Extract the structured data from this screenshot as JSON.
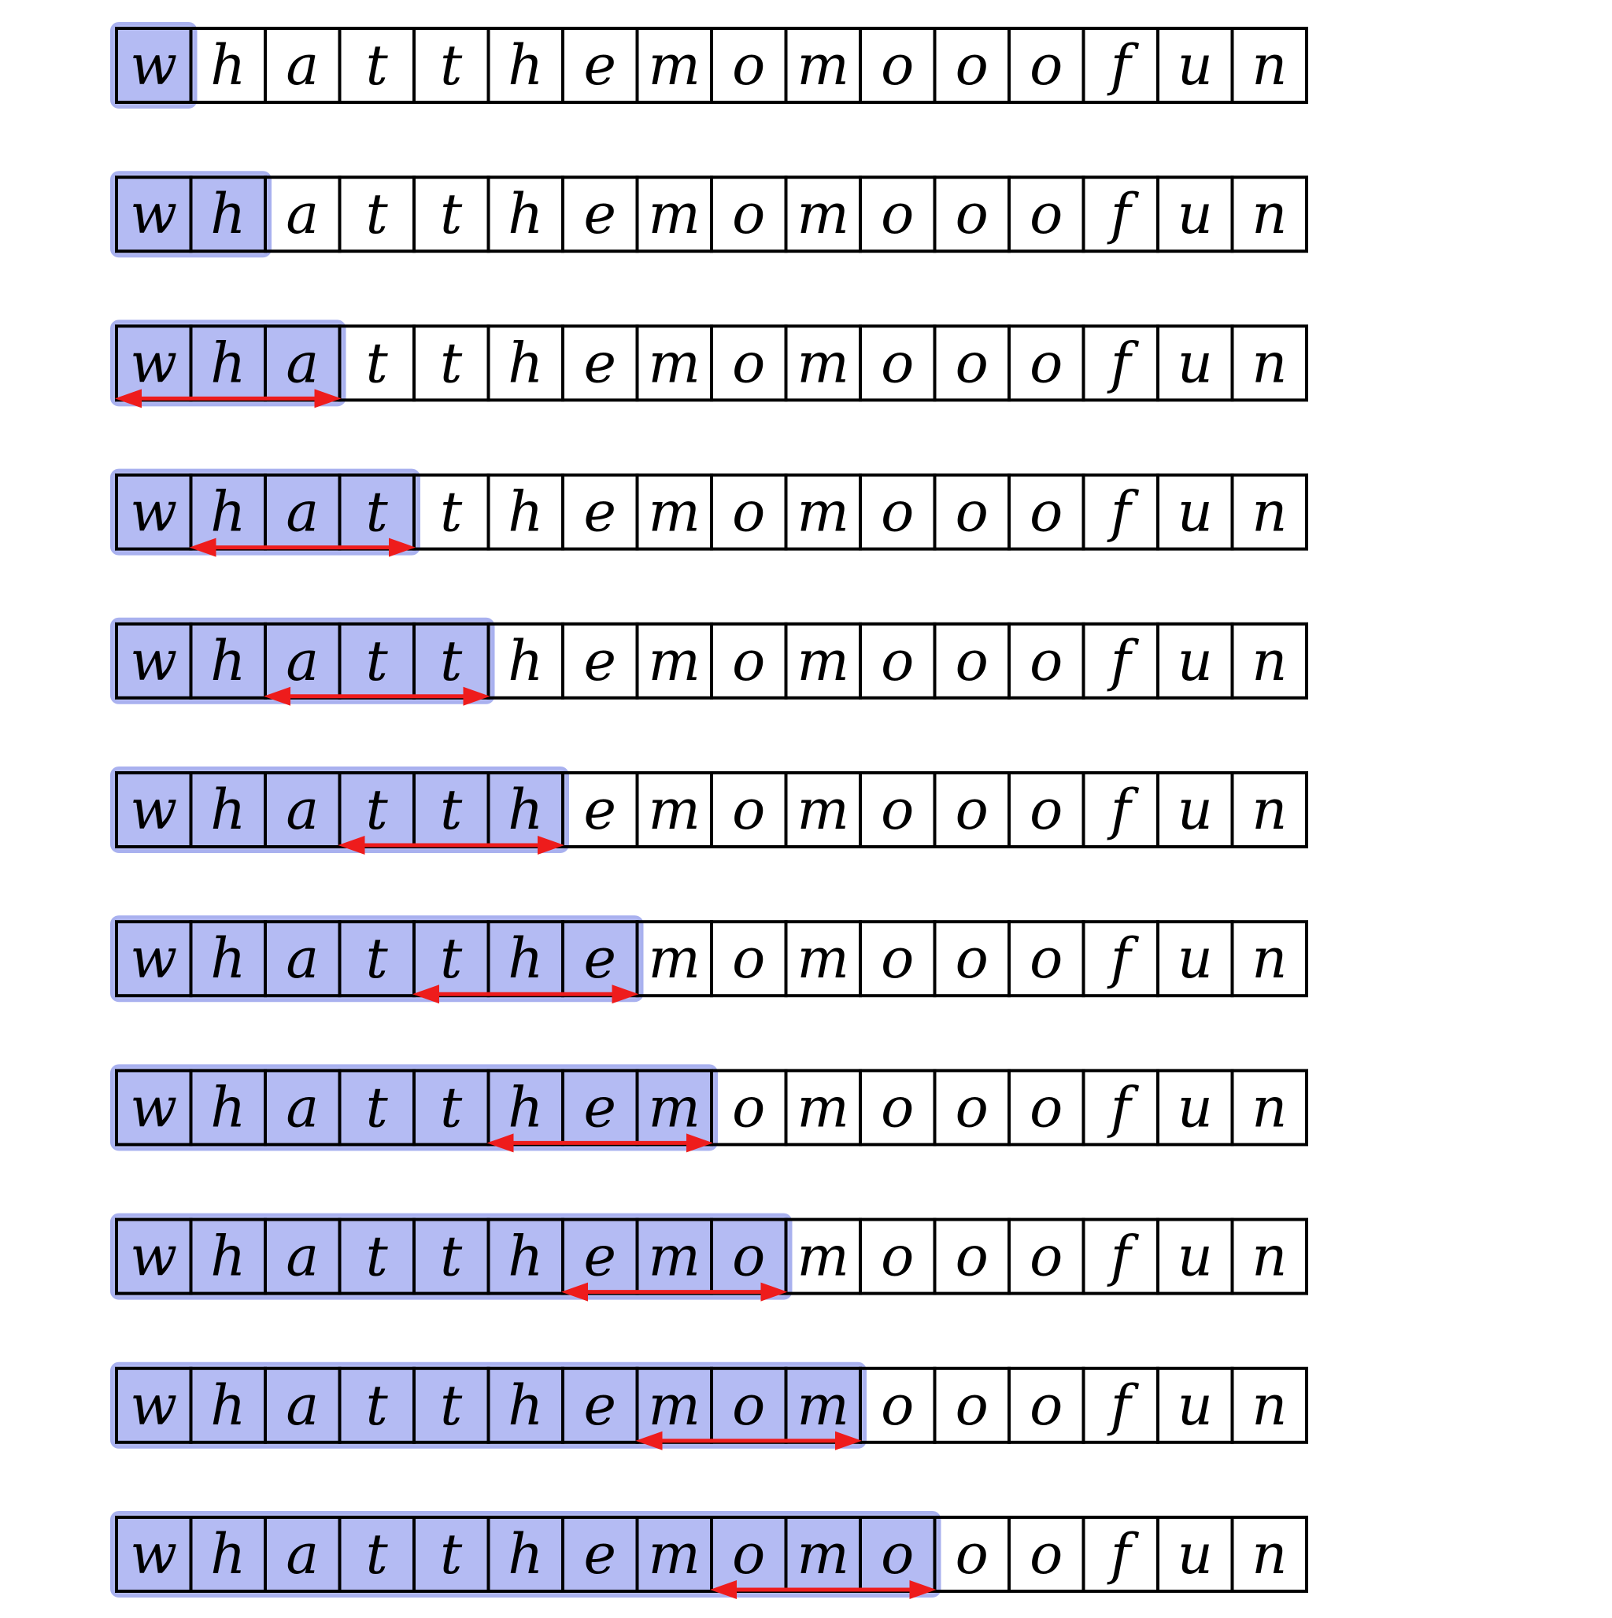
{
  "letters": [
    "w",
    "h",
    "a",
    "t",
    "t",
    "h",
    "e",
    "m",
    "o",
    "m",
    "o",
    "o",
    "o",
    "f",
    "u",
    "n"
  ],
  "rows": [
    {
      "highlight_count": 1,
      "arrow": null
    },
    {
      "highlight_count": 2,
      "arrow": null
    },
    {
      "highlight_count": 3,
      "arrow": {
        "from": 0,
        "to": 3
      }
    },
    {
      "highlight_count": 4,
      "arrow": {
        "from": 1,
        "to": 4
      }
    },
    {
      "highlight_count": 5,
      "arrow": {
        "from": 2,
        "to": 5
      }
    },
    {
      "highlight_count": 6,
      "arrow": {
        "from": 3,
        "to": 6
      }
    },
    {
      "highlight_count": 7,
      "arrow": {
        "from": 4,
        "to": 7
      }
    },
    {
      "highlight_count": 8,
      "arrow": {
        "from": 5,
        "to": 8
      }
    },
    {
      "highlight_count": 9,
      "arrow": {
        "from": 6,
        "to": 9
      }
    },
    {
      "highlight_count": 10,
      "arrow": {
        "from": 7,
        "to": 10
      }
    },
    {
      "highlight_count": 11,
      "arrow": {
        "from": 8,
        "to": 11
      }
    }
  ],
  "colors": {
    "highlight": "#b4bbf3",
    "highlight_border": "#a9b1ef",
    "cell_border": "#000000",
    "arrow": "#ee1c1c",
    "text": "#000000"
  }
}
